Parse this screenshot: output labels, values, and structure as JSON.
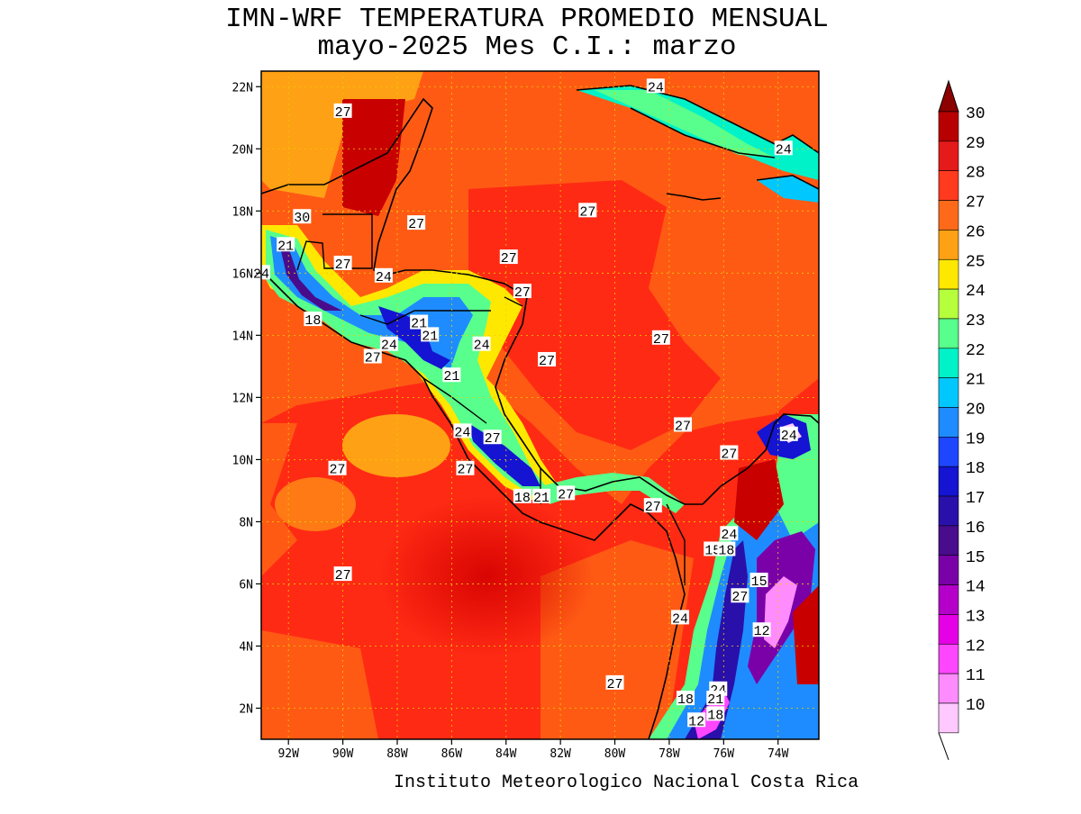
{
  "title": {
    "line1": "IMN-WRF  TEMPERATURA PROMEDIO MENSUAL",
    "line2": "mayo-2025 Mes C.I.: marzo"
  },
  "credit": "Instituto Meteorologico Nacional Costa Rica",
  "map": {
    "lat_range": [
      1,
      22.5
    ],
    "lon_range": [
      -93,
      -72.5
    ],
    "lat_ticks": [
      "22N",
      "20N",
      "18N",
      "16N",
      "14N",
      "12N",
      "10N",
      "8N",
      "6N",
      "4N",
      "2N"
    ],
    "lon_ticks": [
      "92W",
      "90W",
      "88W",
      "86W",
      "84W",
      "82W",
      "80W",
      "78W",
      "76W",
      "74W"
    ],
    "grid": true,
    "contour_labels": [
      {
        "text": "24",
        "lon": -78.5,
        "lat": 22.0
      },
      {
        "text": "27",
        "lon": -90.0,
        "lat": 21.2
      },
      {
        "text": "24",
        "lon": -73.8,
        "lat": 20.0
      },
      {
        "text": "30",
        "lon": -91.5,
        "lat": 17.8
      },
      {
        "text": "27",
        "lon": -87.3,
        "lat": 17.6
      },
      {
        "text": "27",
        "lon": -81.0,
        "lat": 18.0
      },
      {
        "text": "21",
        "lon": -92.1,
        "lat": 16.9
      },
      {
        "text": "27",
        "lon": -90.0,
        "lat": 16.3
      },
      {
        "text": "27",
        "lon": -83.9,
        "lat": 16.5
      },
      {
        "text": "24",
        "lon": -93.0,
        "lat": 16.0
      },
      {
        "text": "24",
        "lon": -88.5,
        "lat": 15.9
      },
      {
        "text": "27",
        "lon": -83.4,
        "lat": 15.4
      },
      {
        "text": "18",
        "lon": -91.1,
        "lat": 14.5
      },
      {
        "text": "21",
        "lon": -87.2,
        "lat": 14.4
      },
      {
        "text": "21",
        "lon": -86.8,
        "lat": 14.0
      },
      {
        "text": "27",
        "lon": -78.3,
        "lat": 13.9
      },
      {
        "text": "24",
        "lon": -88.3,
        "lat": 13.7
      },
      {
        "text": "24",
        "lon": -84.9,
        "lat": 13.7
      },
      {
        "text": "27",
        "lon": -88.9,
        "lat": 13.3
      },
      {
        "text": "27",
        "lon": -82.5,
        "lat": 13.2
      },
      {
        "text": "21",
        "lon": -86.0,
        "lat": 12.7
      },
      {
        "text": "27",
        "lon": -77.5,
        "lat": 11.1
      },
      {
        "text": "24",
        "lon": -85.6,
        "lat": 10.9
      },
      {
        "text": "27",
        "lon": -84.5,
        "lat": 10.7
      },
      {
        "text": "24",
        "lon": -73.6,
        "lat": 10.8
      },
      {
        "text": "27",
        "lon": -75.8,
        "lat": 10.2
      },
      {
        "text": "27",
        "lon": -90.2,
        "lat": 9.7
      },
      {
        "text": "27",
        "lon": -85.5,
        "lat": 9.7
      },
      {
        "text": "18",
        "lon": -83.4,
        "lat": 8.8
      },
      {
        "text": "21",
        "lon": -82.7,
        "lat": 8.8
      },
      {
        "text": "27",
        "lon": -81.8,
        "lat": 8.9
      },
      {
        "text": "27",
        "lon": -78.6,
        "lat": 8.5
      },
      {
        "text": "24",
        "lon": -75.8,
        "lat": 7.6
      },
      {
        "text": "15",
        "lon": -76.4,
        "lat": 7.1
      },
      {
        "text": "18",
        "lon": -75.9,
        "lat": 7.1
      },
      {
        "text": "27",
        "lon": -90.0,
        "lat": 6.3
      },
      {
        "text": "15",
        "lon": -74.7,
        "lat": 6.1
      },
      {
        "text": "27",
        "lon": -75.4,
        "lat": 5.6
      },
      {
        "text": "24",
        "lon": -77.6,
        "lat": 4.9
      },
      {
        "text": "12",
        "lon": -74.6,
        "lat": 4.5
      },
      {
        "text": "27",
        "lon": -80.0,
        "lat": 2.8
      },
      {
        "text": "24",
        "lon": -76.2,
        "lat": 2.6
      },
      {
        "text": "18",
        "lon": -77.4,
        "lat": 2.3
      },
      {
        "text": "21",
        "lon": -76.3,
        "lat": 2.3
      },
      {
        "text": "18",
        "lon": -76.3,
        "lat": 1.8
      },
      {
        "text": "12",
        "lon": -77.0,
        "lat": 1.6
      }
    ]
  },
  "colorbar": {
    "levels": [
      "30",
      "29",
      "28",
      "27",
      "26",
      "25",
      "24",
      "23",
      "22",
      "21",
      "20",
      "19",
      "18",
      "17",
      "16",
      "15",
      "14",
      "13",
      "12",
      "11",
      "10"
    ],
    "colors": [
      "#b80000",
      "#e51a1a",
      "#ff3a1e",
      "#ff6a1a",
      "#ffa114",
      "#ffe800",
      "#b6ff3c",
      "#58ff8c",
      "#00f2c8",
      "#00c8ff",
      "#1e8cff",
      "#1e46ff",
      "#1414d2",
      "#2a10aa",
      "#480c8c",
      "#7a00a8",
      "#b400c8",
      "#e600e6",
      "#ff46ff",
      "#ff8cff",
      "#ffc8ff"
    ],
    "top_color": "#8c0000"
  }
}
